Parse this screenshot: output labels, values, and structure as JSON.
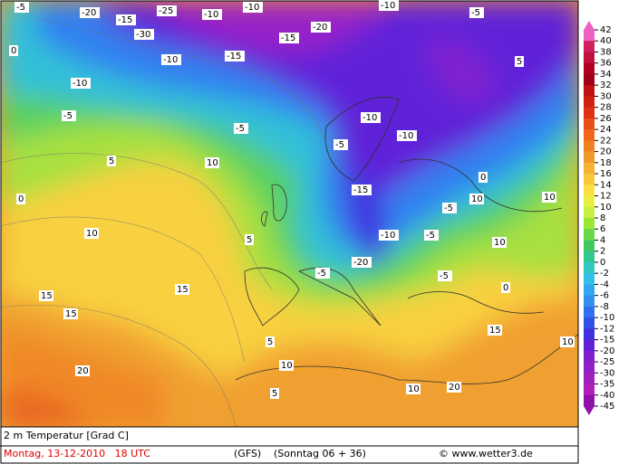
{
  "map": {
    "labels": [
      "-5",
      "-20",
      "-15",
      "-25",
      "-10",
      "-30",
      "-10",
      "-15",
      "-20",
      "-10",
      "-5",
      "-15",
      "-10",
      "0",
      "-5",
      "-10",
      "-5",
      "5",
      "10",
      "5",
      "10",
      "10",
      "15",
      "15",
      "20",
      "15",
      "10",
      "5",
      "0",
      "-5",
      "-10",
      "-20",
      "-10",
      "-5",
      "0",
      "10",
      "-5",
      "-15",
      "-5",
      "5",
      "10",
      "10",
      "15",
      "20",
      "10",
      "5",
      "0",
      "-5",
      "-10"
    ],
    "legend": {
      "levels": [
        42,
        40,
        38,
        36,
        34,
        32,
        30,
        28,
        26,
        24,
        22,
        20,
        18,
        16,
        14,
        12,
        10,
        8,
        6,
        4,
        2,
        0,
        -2,
        -4,
        -6,
        -8,
        -10,
        -12,
        -15,
        -20,
        -25,
        -30,
        -35,
        -40,
        -45
      ],
      "colors": [
        "#f060c0",
        "#d02060",
        "#c01040",
        "#b00020",
        "#a00018",
        "#c01010",
        "#d02010",
        "#e03010",
        "#e85018",
        "#f06818",
        "#f08020",
        "#f09828",
        "#f8b030",
        "#f8c838",
        "#f8e040",
        "#e8f040",
        "#c8f040",
        "#98e838",
        "#68d848",
        "#40c860",
        "#30c890",
        "#30c8c0",
        "#30c0e8",
        "#30a8f0",
        "#3090f0",
        "#3070f0",
        "#3050e8",
        "#4030e0",
        "#6020d8",
        "#8020d0",
        "#9020c8",
        "#a020c0",
        "#b020b8",
        "#9010a8"
      ]
    },
    "footer": {
      "title": "2 m Temperatur [Grad C]",
      "date": "Montag, 13-12-2010   18 UTC",
      "model": "(GFS)",
      "run": "(Sonntag 06 + 36)",
      "credit": "© www.wetter3.de"
    }
  }
}
